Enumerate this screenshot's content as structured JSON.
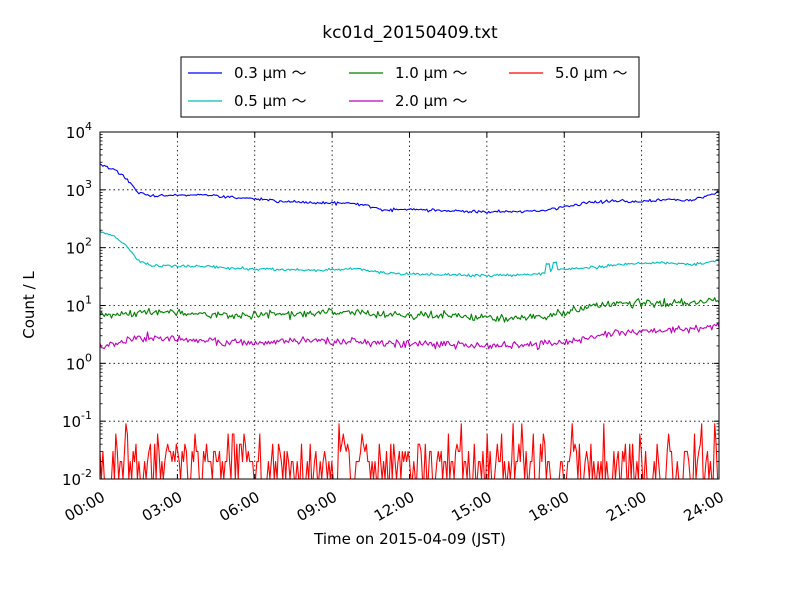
{
  "chart_data": {
    "type": "line",
    "title": "kc01d_20150409.txt",
    "xlabel": "Time on 2015-04-09 (JST)",
    "ylabel": "Count / L",
    "xlim": [
      0,
      24
    ],
    "ylim": [
      0.01,
      10000
    ],
    "yscale": "log",
    "grid": true,
    "legend_position": "top-center, above plot",
    "x_ticks": [
      "00:00",
      "03:00",
      "06:00",
      "09:00",
      "12:00",
      "15:00",
      "18:00",
      "21:00",
      "24:00"
    ],
    "y_ticks": [
      {
        "base": "10",
        "exp": "-2"
      },
      {
        "base": "10",
        "exp": "-1"
      },
      {
        "base": "10",
        "exp": "0"
      },
      {
        "base": "10",
        "exp": "1"
      },
      {
        "base": "10",
        "exp": "2"
      },
      {
        "base": "10",
        "exp": "3"
      },
      {
        "base": "10",
        "exp": "4"
      }
    ],
    "series": [
      {
        "name": "0.3 μm ～",
        "color": "#0000ff",
        "style": "smooth",
        "x": [
          0,
          0.5,
          1,
          1.5,
          2,
          3,
          4,
          5,
          6,
          7,
          8,
          9,
          10,
          11,
          12,
          13,
          14,
          15,
          16,
          17,
          17.5,
          18,
          19,
          20,
          21,
          22,
          23,
          24
        ],
        "y": [
          2800,
          2300,
          1600,
          900,
          780,
          820,
          820,
          750,
          700,
          640,
          600,
          590,
          580,
          450,
          460,
          440,
          430,
          420,
          420,
          420,
          460,
          500,
          610,
          640,
          620,
          680,
          650,
          950
        ]
      },
      {
        "name": "0.5 μm ～",
        "color": "#00bfbf",
        "style": "smooth",
        "x": [
          0,
          0.5,
          1,
          1.5,
          2,
          3,
          4,
          5,
          6,
          7,
          8,
          9,
          10,
          11,
          12,
          13,
          14,
          15,
          16,
          17,
          17.5,
          18,
          19,
          20,
          21,
          22,
          23,
          24
        ],
        "y": [
          190,
          160,
          110,
          60,
          48,
          48,
          48,
          44,
          43,
          42,
          41,
          41,
          43,
          36,
          35,
          34,
          34,
          33,
          33,
          35,
          40,
          42,
          45,
          50,
          53,
          55,
          50,
          62
        ]
      },
      {
        "name": "1.0 μm ～",
        "color": "#008000",
        "style": "noisy",
        "x": [
          0,
          1,
          2,
          3,
          4,
          5,
          6,
          7,
          8,
          9,
          10,
          11,
          12,
          13,
          14,
          15,
          16,
          17,
          17.5,
          18,
          19,
          20,
          21,
          22,
          23,
          24
        ],
        "y": [
          7.0,
          7.5,
          7.8,
          7.5,
          7.2,
          6.8,
          6.8,
          7.0,
          7.2,
          7.5,
          7.6,
          7.0,
          6.8,
          6.7,
          6.5,
          6.2,
          6.0,
          6.4,
          6.8,
          7.5,
          9.5,
          11.0,
          11.5,
          11.0,
          11.5,
          12.5
        ]
      },
      {
        "name": "2.0 μm ～",
        "color": "#bf00bf",
        "style": "noisy",
        "x": [
          0,
          1,
          2,
          3,
          4,
          5,
          6,
          7,
          8,
          9,
          10,
          11,
          12,
          13,
          14,
          15,
          16,
          17,
          17.5,
          18,
          19,
          20,
          21,
          22,
          23,
          24
        ],
        "y": [
          2.0,
          2.5,
          2.8,
          2.6,
          2.4,
          2.3,
          2.3,
          2.4,
          2.5,
          2.4,
          2.4,
          2.3,
          2.2,
          2.1,
          2.1,
          2.0,
          2.0,
          2.1,
          2.2,
          2.3,
          2.8,
          3.3,
          3.6,
          3.8,
          4.0,
          4.3
        ]
      },
      {
        "name": "5.0 μm ～",
        "color": "#ff0000",
        "style": "spiky",
        "x": [
          0,
          24
        ],
        "y": [
          0.01,
          0.1
        ]
      }
    ]
  }
}
